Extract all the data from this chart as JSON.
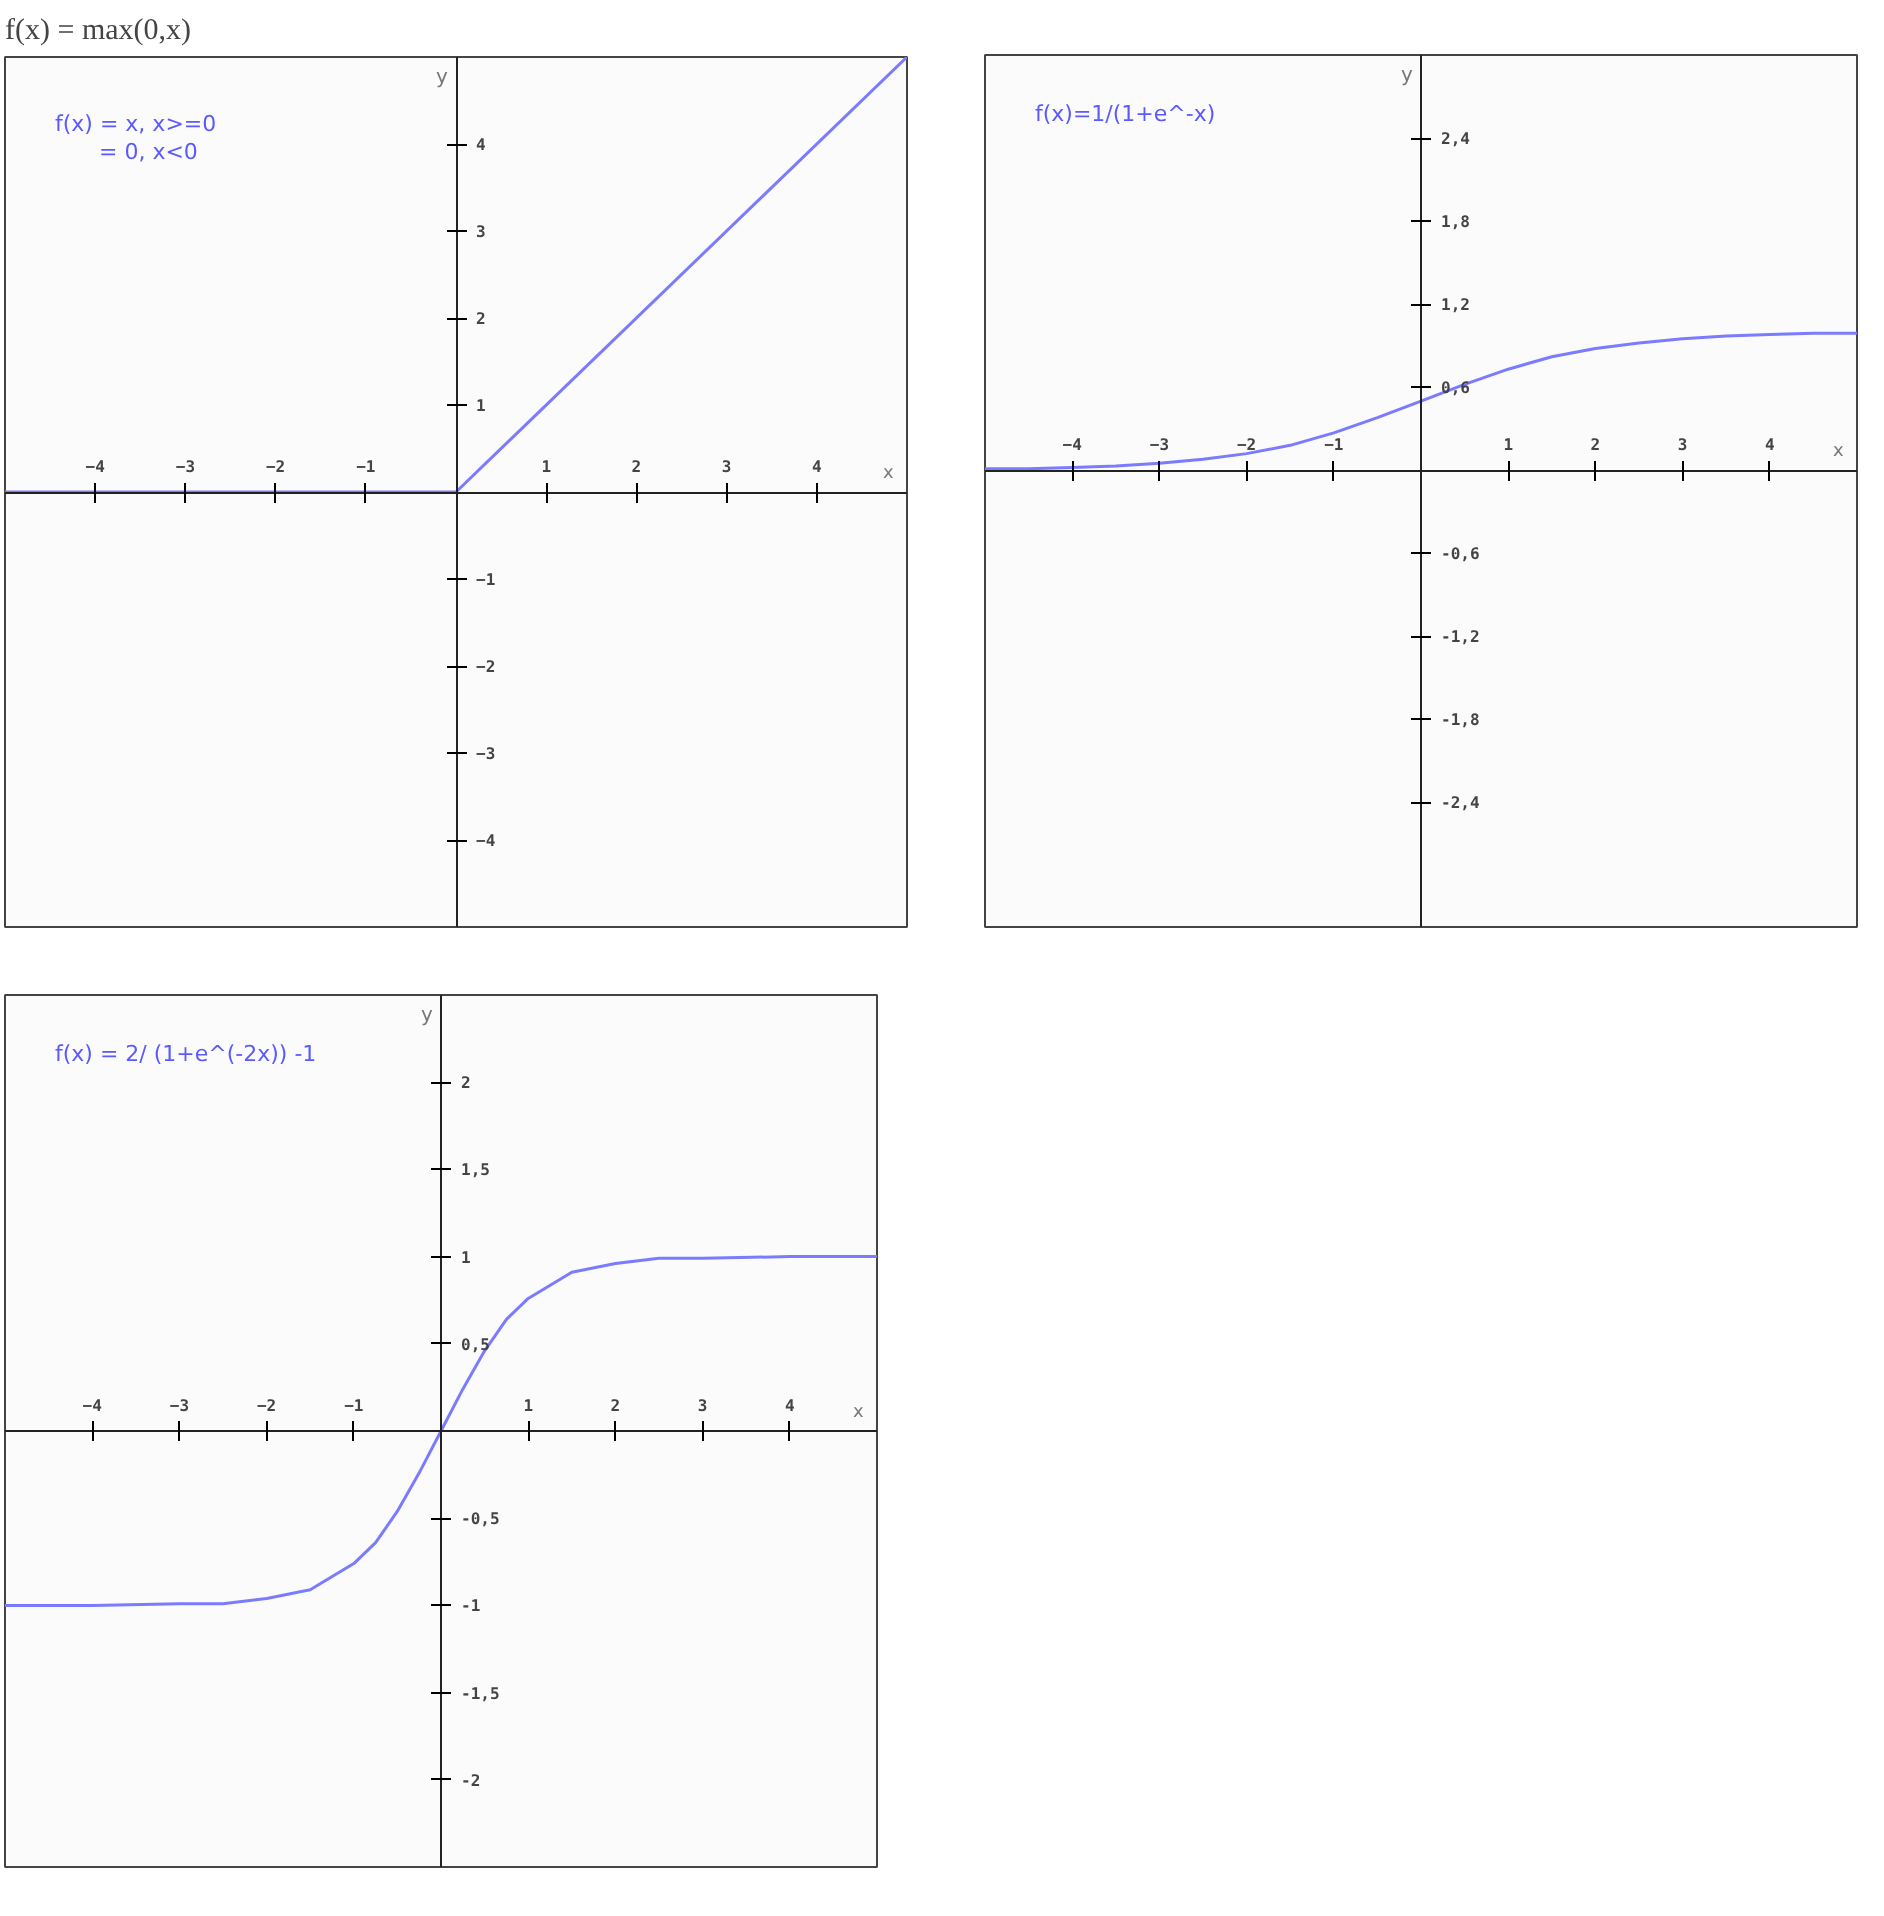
{
  "chart_data": [
    {
      "type": "line",
      "title": "f(x) = max(0,x)",
      "annotations": [
        "f(x) = x, x>=0",
        "= 0, x<0"
      ],
      "xlabel": "x",
      "ylabel": "y",
      "color": "#7b7bff",
      "x": [
        -5,
        0,
        5
      ],
      "values": [
        0,
        0,
        5
      ],
      "xlim": [
        -5,
        5
      ],
      "ylim": [
        -5,
        5
      ],
      "xticks": [
        -4,
        -3,
        -2,
        -1,
        1,
        2,
        3,
        4
      ],
      "yticks": [
        -4,
        -3,
        -2,
        -1,
        1,
        2,
        3,
        4
      ]
    },
    {
      "type": "line",
      "annotations": [
        "f(x)=1/(1+e^-x)"
      ],
      "xlabel": "x",
      "ylabel": "y",
      "color": "#7b7bff",
      "x": [
        -5,
        -4.5,
        -4,
        -3.5,
        -3,
        -2.5,
        -2,
        -1.5,
        -1,
        -0.5,
        0,
        0.5,
        1,
        1.5,
        2,
        2.5,
        3,
        3.5,
        4,
        4.5,
        5
      ],
      "values": [
        0.01,
        0.01,
        0.02,
        0.03,
        0.05,
        0.08,
        0.12,
        0.18,
        0.27,
        0.38,
        0.5,
        0.62,
        0.73,
        0.82,
        0.88,
        0.92,
        0.95,
        0.97,
        0.98,
        0.99,
        0.99
      ],
      "xlim": [
        -5,
        5
      ],
      "ylim": [
        -3.3,
        3.0
      ],
      "xticks": [
        -4,
        -3,
        -2,
        -1,
        1,
        2,
        3,
        4
      ],
      "yticks": [
        {
          "value": -2.4,
          "label": "-2,4"
        },
        {
          "value": -1.8,
          "label": "-1,8"
        },
        {
          "value": -1.2,
          "label": "-1,2"
        },
        {
          "value": -0.6,
          "label": "-0,6"
        },
        {
          "value": 0.6,
          "label": "0,6"
        },
        {
          "value": 1.2,
          "label": "1,2"
        },
        {
          "value": 1.8,
          "label": "1,8"
        },
        {
          "value": 2.4,
          "label": "2,4"
        }
      ]
    },
    {
      "type": "line",
      "annotations": [
        "f(x) = 2/ (1+e^(-2x)) -1"
      ],
      "xlabel": "x",
      "ylabel": "y",
      "color": "#7b7bff",
      "x": [
        -5,
        -4,
        -3,
        -2.5,
        -2,
        -1.5,
        -1,
        -0.75,
        -0.5,
        -0.25,
        0,
        0.25,
        0.5,
        0.75,
        1,
        1.5,
        2,
        2.5,
        3,
        4,
        5
      ],
      "values": [
        -1,
        -1,
        -0.99,
        -0.99,
        -0.96,
        -0.91,
        -0.76,
        -0.64,
        -0.46,
        -0.24,
        0,
        0.24,
        0.46,
        0.64,
        0.76,
        0.91,
        0.96,
        0.99,
        0.99,
        1,
        1
      ],
      "xlim": [
        -5,
        5
      ],
      "ylim": [
        -2.5,
        2.5
      ],
      "xticks": [
        -4,
        -3,
        -2,
        -1,
        1,
        2,
        3,
        4
      ],
      "yticks": [
        {
          "value": -2,
          "label": "-2"
        },
        {
          "value": -1.5,
          "label": "-1,5"
        },
        {
          "value": -1,
          "label": "-1"
        },
        {
          "value": -0.5,
          "label": "-0,5"
        },
        {
          "value": 0.5,
          "label": "0,5"
        },
        {
          "value": 1,
          "label": "1"
        },
        {
          "value": 1.5,
          "label": "1,5"
        },
        {
          "value": 2,
          "label": "2"
        }
      ]
    }
  ]
}
